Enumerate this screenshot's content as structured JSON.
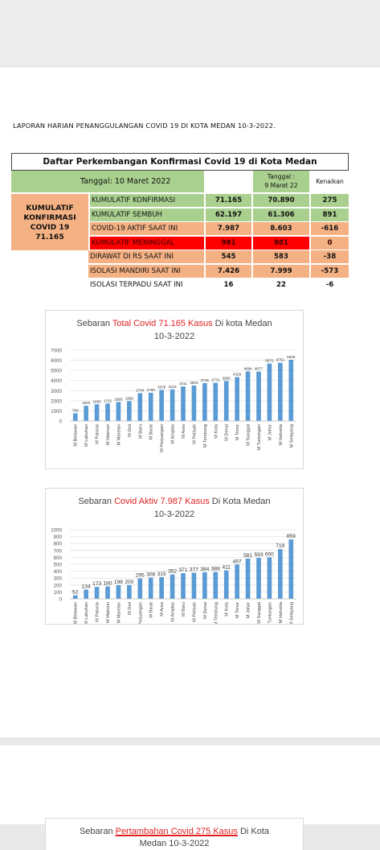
{
  "report": {
    "title": "LAPORAN HARIAN PENANGGULANGAN COVID 19 DI KOTA MEDAN 10-3-2022."
  },
  "table": {
    "header": "Daftar Perkembangan  Konfirmasi Covid 19 di Kota Medan",
    "date_label": "Tanggal: 10 Maret 2022",
    "prev_date_label": "Tanggal  :\n9 Maret 22",
    "change_label": "Kenaikan",
    "left_block": "KUMULATIF\nKONFIRMASI\nCOVID 19\n71.165",
    "rows": [
      {
        "label": "KUMULATIF KONFIRMASI",
        "today": "71.165",
        "prev": "70.890",
        "change": "275"
      },
      {
        "label": "KUMULATIF SEMBUH",
        "today": "62.197",
        "prev": "61.306",
        "change": "891"
      },
      {
        "label": "COVID-19 AKTIF SAAT INI",
        "today": "7.987",
        "prev": "8.603",
        "change": "-616"
      },
      {
        "label": "KUMULATIF MENINGGAL",
        "today": "981",
        "prev": "981",
        "change": "0"
      },
      {
        "label": "DIRAWAT DI RS SAAT INI",
        "today": "545",
        "prev": "583",
        "change": "-38"
      },
      {
        "label": "ISOLASI MANDIRI SAAT INI",
        "today": "7.426",
        "prev": "7.999",
        "change": "-573"
      },
      {
        "label": "ISOLASI TERPADU SAAT INI",
        "today": "16",
        "prev": "22",
        "change": "-6"
      }
    ]
  },
  "chart_data": [
    {
      "type": "bar",
      "title_prefix": "Sebaran ",
      "title_highlight": "Total Covid 71.165 Kasus",
      "title_suffix": " Di kota Medan",
      "subtitle": "10-3-2022",
      "ylim": [
        0,
        7000
      ],
      "yticks": [
        "7000",
        "6000",
        "5000",
        "4000",
        "3000",
        "2000",
        "1000",
        "0"
      ],
      "grid": true,
      "bar_color": "#5b9bd5",
      "categories": [
        "M Belawan",
        "M Labuhan",
        "M Polonia",
        "M Maimun",
        "M Marelan",
        "M Deli",
        "M Baru",
        "M Barat",
        "M Perjuangan",
        "M Amplas",
        "M Area",
        "M Petisah",
        "M Tembung",
        "M Kota",
        "M Denai",
        "M Timur",
        "M Sunggal",
        "M Tuntungan",
        "M Johor",
        "M Helvetia",
        "M Selayang"
      ],
      "values": [
        759,
        1503,
        1650,
        1722,
        1880,
        1966,
        2746,
        2790,
        3078,
        3119,
        3411,
        3500,
        3745,
        3772,
        3955,
        4329,
        4894,
        4877,
        5672,
        5751,
        6046
      ],
      "labels": [
        "759",
        "1503",
        "1650",
        "1722",
        "1880",
        "1966",
        "2746",
        "2790",
        "3078",
        "3119",
        "3411",
        "3500",
        "3745",
        "3772",
        "3955",
        "4329",
        "4894",
        "4877",
        "5672",
        "5751",
        "6046"
      ]
    },
    {
      "type": "bar",
      "title_prefix": "Sebaran ",
      "title_highlight": "Covid Aktiv 7.987 Kasus",
      "title_suffix": " Di Kota Medan",
      "subtitle": "10-3-2022",
      "ylim": [
        0,
        1000
      ],
      "yticks": [
        "1000",
        "900",
        "800",
        "700",
        "600",
        "500",
        "400",
        "300",
        "200",
        "100",
        "0"
      ],
      "grid": true,
      "bar_color": "#5b9bd5",
      "categories": [
        "M Belawan",
        "M Labuhan",
        "M Polonia",
        "M Maimun",
        "M Marelan",
        "M Deli",
        "M Perjuangan",
        "M Barat",
        "M Area",
        "M Amplas",
        "M Baru",
        "M Petisah",
        "M Denai",
        "M Tembung",
        "M Kota",
        "M Timur",
        "M Johor",
        "M Sunggal",
        "M Tuntungan",
        "M Helvetia",
        "M Selayang"
      ],
      "values": [
        52,
        134,
        173,
        180,
        198,
        200,
        295,
        308,
        315,
        352,
        371,
        377,
        384,
        388,
        411,
        497,
        581,
        593,
        600,
        719,
        859
      ],
      "labels": [
        "52",
        "134",
        "173",
        "180",
        "198",
        "200",
        "295",
        "308",
        "315",
        "352",
        "371",
        "377",
        "384",
        "388",
        "411",
        "497",
        "581",
        "593",
        "600",
        "719",
        "859"
      ]
    }
  ],
  "chart3": {
    "title_prefix": "Sebaran ",
    "title_highlight": "Pertambahan Covid 275 Kasus",
    "title_suffix": " Di Kota",
    "subtitle": "Medan 10-3-2022"
  }
}
